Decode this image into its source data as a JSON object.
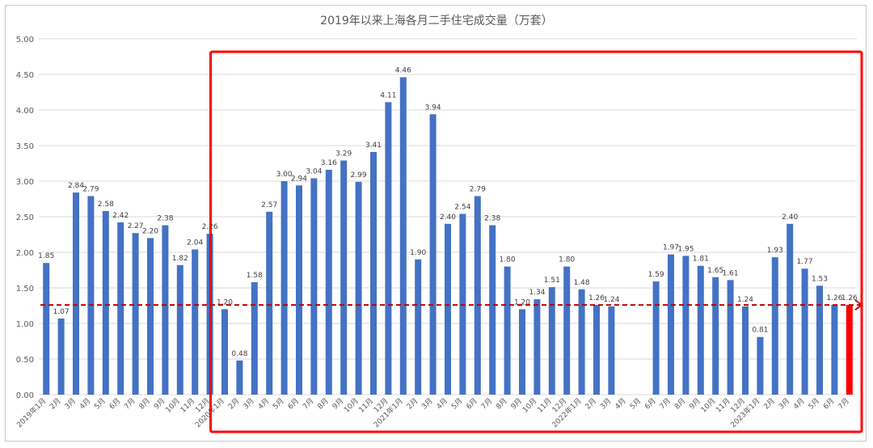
{
  "chart_data": {
    "type": "bar",
    "title": "2019年以来上海各月二手住宅成交量（万套）",
    "xlabel": "",
    "ylabel": "",
    "ylim": [
      0,
      5
    ],
    "yticks": [
      "0.00",
      "0.50",
      "1.00",
      "1.50",
      "2.00",
      "2.50",
      "3.00",
      "3.50",
      "4.00",
      "4.50",
      "5.00"
    ],
    "grid": true,
    "legend": "none",
    "colors": {
      "bar": "#4472c4",
      "highlight_bar": "#ff0000",
      "highlight_box": "#ff0000",
      "reference_line": "#c00000",
      "grid": "#d9d9d9",
      "text": "#595959"
    },
    "categories": [
      "2019年1月",
      "2月",
      "3月",
      "4月",
      "5月",
      "6月",
      "7月",
      "8月",
      "9月",
      "10月",
      "11月",
      "12月",
      "2020年1月",
      "2月",
      "3月",
      "4月",
      "5月",
      "6月",
      "7月",
      "8月",
      "9月",
      "10月",
      "11月",
      "12月",
      "2021年1月",
      "2月",
      "3月",
      "4月",
      "5月",
      "6月",
      "7月",
      "8月",
      "9月",
      "10月",
      "11月",
      "12月",
      "2022年1月",
      "2月",
      "3月",
      "4月",
      "5月",
      "6月",
      "7月",
      "8月",
      "9月",
      "10月",
      "11月",
      "12月",
      "2023年1月",
      "2月",
      "3月",
      "4月",
      "5月",
      "6月",
      "7月"
    ],
    "values": [
      1.85,
      1.07,
      2.84,
      2.79,
      2.58,
      2.42,
      2.27,
      2.2,
      2.38,
      1.82,
      2.04,
      2.26,
      1.2,
      0.48,
      1.58,
      2.57,
      3.0,
      2.94,
      3.04,
      3.16,
      3.29,
      2.99,
      3.41,
      4.11,
      4.46,
      1.9,
      3.94,
      2.4,
      2.54,
      2.79,
      2.38,
      1.8,
      1.2,
      1.34,
      1.51,
      1.8,
      1.48,
      1.26,
      1.24,
      null,
      null,
      1.59,
      1.97,
      1.95,
      1.81,
      1.65,
      1.61,
      1.24,
      0.81,
      1.93,
      2.4,
      1.77,
      1.53,
      1.26,
      1.26
    ],
    "data_labels": [
      "1.85",
      "1.07",
      "2.84",
      "2.79",
      "2.58",
      "2.42",
      "2.27",
      "2.20",
      "2.38",
      "1.82",
      "2.04",
      "2.26",
      "1.20",
      "0.48",
      "1.58",
      "2.57",
      "3.00",
      "2.94",
      "3.04",
      "3.16",
      "3.29",
      "2.99",
      "3.41",
      "4.11",
      "4.46",
      "1.90",
      "3.94",
      "2.40",
      "2.54",
      "2.79",
      "2.38",
      "1.80",
      "1.20",
      "1.34",
      "1.51",
      "1.80",
      "1.48",
      "1.26",
      "1.24",
      "",
      "",
      "1.59",
      "1.97",
      "1.95",
      "1.81",
      "1.65",
      "1.61",
      "1.24",
      "0.81",
      "1.93",
      "2.40",
      "1.77",
      "1.53",
      "1.26",
      "1.26"
    ],
    "highlight_index": 54,
    "reference_line_value": 1.26,
    "highlight_box_from_index": 12
  }
}
